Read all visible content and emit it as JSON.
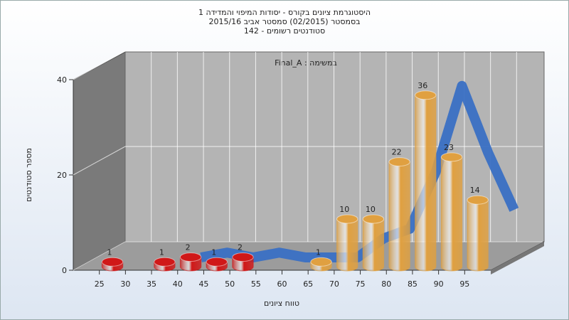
{
  "chart_data": {
    "type": "histogram",
    "title_lines": [
      "היסטוגרמת ציונים בקורס - יסודות המיפוי והמדידה 1",
      "בסמסטר  (02/2015)  סמסטר אביב 2015/16",
      "סטודנטים רשומים - 142"
    ],
    "annotation": "במשימה : Final_A",
    "x_label": "טווח ציונים",
    "y_label": "מספר סטודנטים",
    "bins": [
      25,
      30,
      35,
      40,
      45,
      50,
      55,
      60,
      65,
      70,
      75,
      80,
      85,
      90,
      95,
      100
    ],
    "counts": [
      1,
      0,
      1,
      2,
      1,
      2,
      0,
      0,
      1,
      10,
      10,
      22,
      36,
      23,
      14
    ],
    "colors": [
      "#d01818",
      "#d01818",
      "#d01818",
      "#d01818",
      "#d01818",
      "#d01818",
      "#d01818",
      "#d01818",
      "#e0a040",
      "#e0a040",
      "#e0a040",
      "#e0a040",
      "#e0a040",
      "#e0a040",
      "#e0a040"
    ],
    "curve": {
      "color": "#3a70c4",
      "x": [
        40,
        45,
        50,
        55,
        60,
        65,
        70,
        75,
        80,
        85,
        90,
        95,
        100
      ],
      "values": [
        0,
        1,
        0,
        1,
        0,
        0,
        0,
        4,
        6,
        18,
        36,
        22,
        10
      ]
    },
    "xlim": [
      20,
      100
    ],
    "xticks": [
      25,
      30,
      35,
      40,
      45,
      50,
      55,
      60,
      65,
      70,
      75,
      80,
      85,
      90,
      95
    ],
    "ylim": [
      0,
      40
    ],
    "yticks": [
      0,
      20,
      40
    ],
    "grid": true
  }
}
